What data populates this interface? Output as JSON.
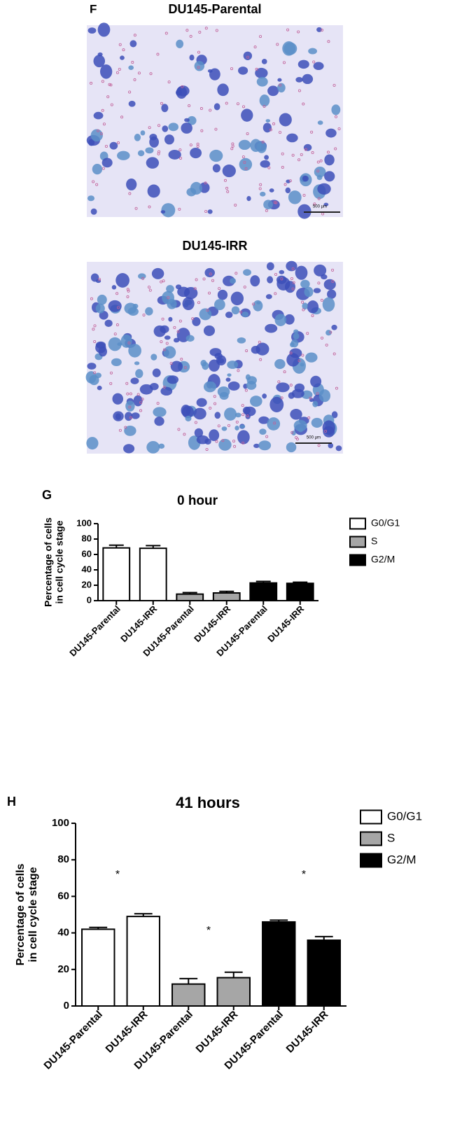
{
  "panel_f": {
    "label": "F",
    "images": [
      {
        "title": "DU145-Parental",
        "scale_bar": "500 µm"
      },
      {
        "title": "DU145-IRR",
        "scale_bar": "500 µm"
      }
    ]
  },
  "chart_data": [
    {
      "type": "bar",
      "panel": "G",
      "title": "0 hour",
      "ylabel": [
        "Percentage of cells",
        "in cell cycle stage"
      ],
      "categories": [
        "DU145-Parental",
        "DU145-IRR",
        "DU145-Parental",
        "DU145-IRR",
        "DU145-Parental",
        "DU145-IRR"
      ],
      "series": [
        {
          "name": "G0/G1",
          "color": "#ffffff",
          "values": [
            68.5,
            68,
            null,
            null,
            null,
            null
          ],
          "errors": [
            3.5,
            3.5,
            null,
            null,
            null,
            null
          ]
        },
        {
          "name": "S",
          "color": "#a6a6a6",
          "values": [
            null,
            null,
            8.5,
            10,
            null,
            null
          ],
          "errors": [
            null,
            null,
            2,
            2,
            null,
            null
          ]
        },
        {
          "name": "G2/M",
          "color": "#000000",
          "values": [
            null,
            null,
            null,
            null,
            23,
            22.5
          ],
          "errors": [
            null,
            null,
            null,
            null,
            2,
            1.5
          ]
        }
      ],
      "ylim": [
        0,
        100
      ],
      "yticks": [
        0,
        20,
        40,
        60,
        80,
        100
      ],
      "annotations": []
    },
    {
      "type": "bar",
      "panel": "H",
      "title": "41 hours",
      "ylabel": [
        "Percentage of cells",
        "in cell cycle stage"
      ],
      "categories": [
        "DU145-Parental",
        "DU145-IRR",
        "DU145-Parental",
        "DU145-IRR",
        "DU145-Parental",
        "DU145-IRR"
      ],
      "series": [
        {
          "name": "G0/G1",
          "color": "#ffffff",
          "values": [
            42,
            49,
            null,
            null,
            null,
            null
          ],
          "errors": [
            1,
            1.5,
            null,
            null,
            null,
            null
          ]
        },
        {
          "name": "S",
          "color": "#a6a6a6",
          "values": [
            null,
            null,
            12,
            15.5,
            null,
            null
          ],
          "errors": [
            null,
            null,
            3,
            3,
            null,
            null
          ]
        },
        {
          "name": "G2/M",
          "color": "#000000",
          "values": [
            null,
            null,
            null,
            null,
            46,
            36
          ],
          "errors": [
            null,
            null,
            null,
            null,
            1,
            2
          ]
        }
      ],
      "ylim": [
        0,
        100
      ],
      "yticks": [
        0,
        20,
        40,
        60,
        80,
        100
      ],
      "annotations": [
        "*",
        "*",
        "*"
      ]
    }
  ]
}
